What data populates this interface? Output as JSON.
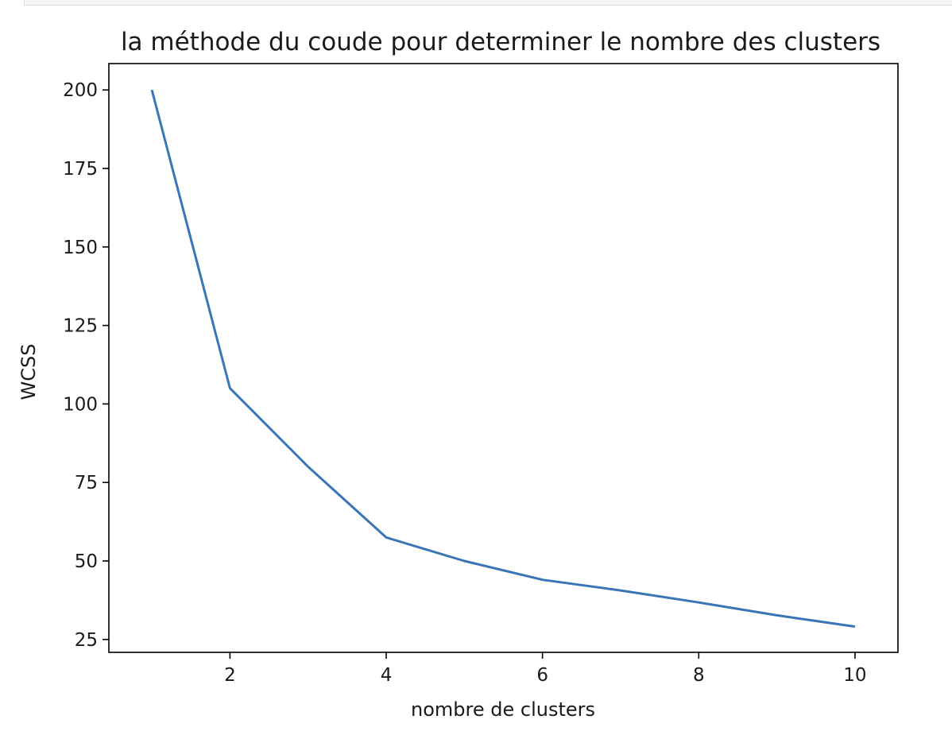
{
  "chart_data": {
    "type": "line",
    "title": "la méthode du coude pour determiner le nombre des clusters",
    "xlabel": "nombre de clusters",
    "ylabel": "WCSS",
    "x": [
      1,
      2,
      3,
      4,
      5,
      6,
      7,
      8,
      9,
      10
    ],
    "series": [
      {
        "values": [
          200.0,
          105.0,
          80.0,
          57.5,
          50.0,
          44.0,
          40.6,
          36.8,
          32.7,
          29.1
        ],
        "color": "#3a75b8"
      }
    ],
    "xlim": [
      0.45,
      10.55
    ],
    "ylim": [
      20.9,
      208.4
    ],
    "xticks": [
      2,
      4,
      6,
      8,
      10
    ],
    "yticks": [
      25,
      50,
      75,
      100,
      125,
      150,
      175,
      200
    ],
    "grid": false,
    "legend": "none"
  }
}
